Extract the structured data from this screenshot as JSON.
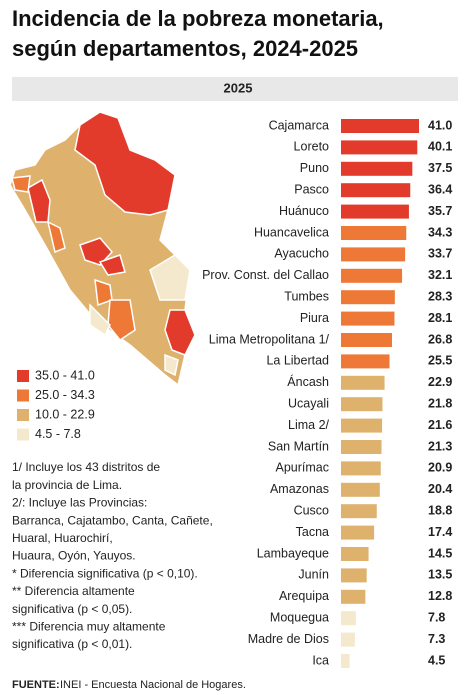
{
  "chart_data": {
    "type": "hbar",
    "title": [
      "Incidencia de la pobreza monetaria,",
      "según departamentos, 2024-2025"
    ],
    "subtitle": "2025",
    "categories": [
      "Cajamarca",
      "Loreto",
      "Puno",
      "Pasco",
      "Huánuco",
      "Huancavelica",
      "Ayacucho",
      "Prov. Const. del Callao",
      "Tumbes",
      "Piura",
      "Lima Metropolitana 1/",
      "La Libertad",
      "Áncash",
      "Ucayali",
      "Lima 2/",
      "San Martín",
      "Apurímac",
      "Amazonas",
      "Cusco",
      "Tacna",
      "Lambayeque",
      "Junín",
      "Arequipa",
      "Moquegua",
      "Madre de Dios",
      "Ica"
    ],
    "values": [
      41.0,
      40.1,
      37.5,
      36.4,
      35.7,
      34.3,
      33.7,
      32.1,
      28.3,
      28.1,
      26.8,
      25.5,
      22.9,
      21.8,
      21.6,
      21.3,
      20.9,
      20.4,
      18.8,
      17.4,
      14.5,
      13.5,
      12.8,
      7.8,
      7.3,
      4.5
    ],
    "value_labels": [
      "41.0",
      "40.1",
      "37.5",
      "36.4",
      "35.7",
      "34.3",
      "33.7",
      "32.1",
      "28.3",
      "28.1",
      "26.8",
      "25.5",
      "22.9",
      "21.8",
      "21.6",
      "21.3",
      "20.9",
      "20.4",
      "18.8",
      "17.4",
      "14.5",
      "13.5",
      "12.8",
      "7.8",
      "7.3",
      "4.5"
    ],
    "colors": [
      "#e23b2c",
      "#e23b2c",
      "#e23b2c",
      "#e23b2c",
      "#e23b2c",
      "#ee7836",
      "#ee7836",
      "#ee7836",
      "#ee7836",
      "#ee7836",
      "#ee7836",
      "#ee7836",
      "#deb26d",
      "#deb26d",
      "#deb26d",
      "#deb26d",
      "#deb26d",
      "#deb26d",
      "#deb26d",
      "#deb26d",
      "#deb26d",
      "#deb26d",
      "#deb26d",
      "#f4e8cd",
      "#f4e8cd",
      "#f4e8cd"
    ],
    "legend": [
      {
        "label": "35.0 - 41.0",
        "color": "#e23b2c"
      },
      {
        "label": "25.0 - 34.3",
        "color": "#ee7836"
      },
      {
        "label": "10.0 - 22.9",
        "color": "#deb26d"
      },
      {
        "label": "4.5 - 7.8",
        "color": "#f4e8cd"
      }
    ],
    "notes": [
      "1/ Incluye los 43 distritos de",
      "la provincia de Lima.",
      "2/: Incluye las Provincias:",
      "Barranca, Cajatambo, Canta, Cañete,",
      "Huaral, Huarochirí,",
      "Huaura, Oyón, Yauyos.",
      "* Diferencia significativa (p < 0,10).",
      "** Diferencia altamente",
      "significativa (p < 0,05).",
      "*** Diferencia muy altamente",
      "significativa (p < 0,01)."
    ],
    "source_label": "FUENTE:",
    "source": " INEI - Encuesta Nacional de Hogares."
  }
}
